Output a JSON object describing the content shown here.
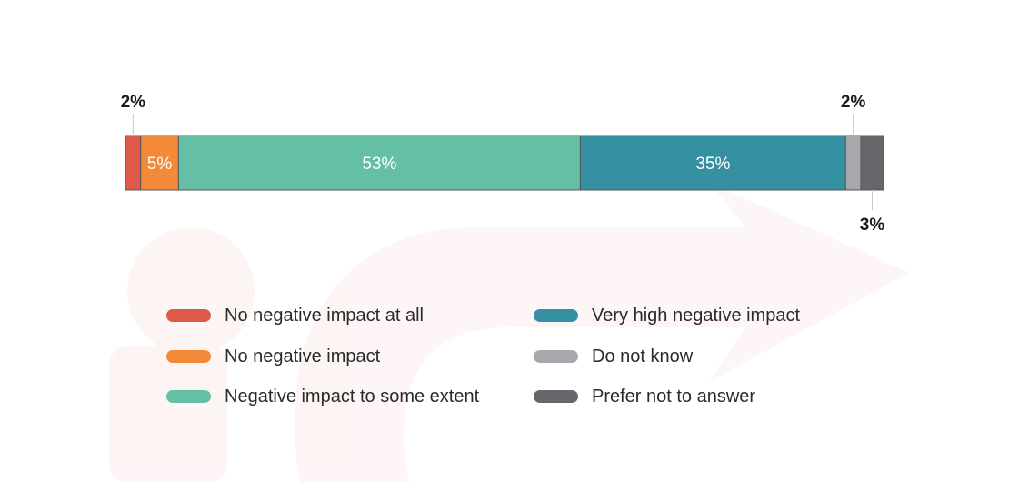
{
  "chart_data": {
    "type": "bar",
    "orientation": "horizontal-stacked-100",
    "title": "",
    "xlabel": "",
    "ylabel": "",
    "xlim": [
      0,
      100
    ],
    "grid": false,
    "legend_position": "bottom",
    "series": [
      {
        "name": "No negative impact at all",
        "value": 2,
        "label": "2%",
        "color": "#dd5a4b",
        "label_position": "above"
      },
      {
        "name": "No negative impact",
        "value": 5,
        "label": "5%",
        "color": "#f28a3a",
        "label_position": "inside"
      },
      {
        "name": "Negative impact to some extent",
        "value": 53,
        "label": "53%",
        "color": "#64bfa4",
        "label_position": "inside"
      },
      {
        "name": "Very high negative impact",
        "value": 35,
        "label": "35%",
        "color": "#3591a1",
        "label_position": "inside"
      },
      {
        "name": "Do not know",
        "value": 2,
        "label": "2%",
        "color": "#a7a8ac",
        "label_position": "above"
      },
      {
        "name": "Prefer not to answer",
        "value": 3,
        "label": "3%",
        "color": "#67676b",
        "label_position": "below"
      }
    ]
  }
}
